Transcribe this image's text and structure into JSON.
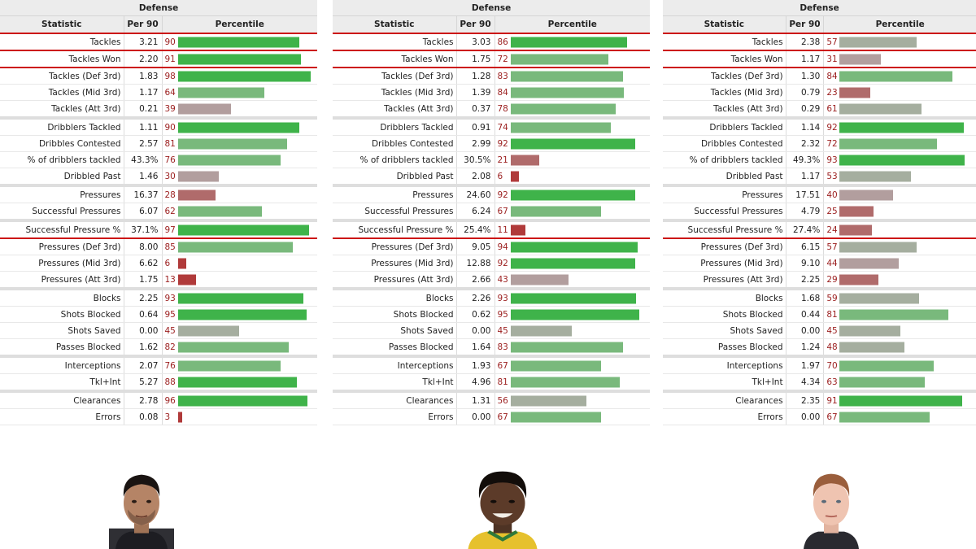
{
  "colors": {
    "bar_elite": "#3fb34a",
    "bar_good": "#79b97c",
    "bar_neutral": "#a5ae9f",
    "bar_mid_low": "#b29e9e",
    "bar_low": "#b06b6b",
    "bar_very_low": "#b03a3a",
    "highlight_line": "#cc1111"
  },
  "panels": [
    {
      "title": "Defense",
      "headers": {
        "statistic": "Statistic",
        "per90": "Per 90",
        "percentile": "Percentile"
      },
      "photo_icon": "player-headshot-1",
      "rows": [
        {
          "stat": "Tackles",
          "per90": "3.21",
          "pct": "90"
        },
        {
          "stat": "Tackles Won",
          "per90": "2.20",
          "pct": "91"
        },
        {
          "stat": "Tackles (Def 3rd)",
          "per90": "1.83",
          "pct": "98"
        },
        {
          "stat": "Tackles (Mid 3rd)",
          "per90": "1.17",
          "pct": "64"
        },
        {
          "stat": "Tackles (Att 3rd)",
          "per90": "0.21",
          "pct": "39"
        },
        {
          "stat": "Dribblers Tackled",
          "per90": "1.11",
          "pct": "90"
        },
        {
          "stat": "Dribbles Contested",
          "per90": "2.57",
          "pct": "81"
        },
        {
          "stat": "% of dribblers tackled",
          "per90": "43.3%",
          "pct": "76"
        },
        {
          "stat": "Dribbled Past",
          "per90": "1.46",
          "pct": "30"
        },
        {
          "stat": "Pressures",
          "per90": "16.37",
          "pct": "28"
        },
        {
          "stat": "Successful Pressures",
          "per90": "6.07",
          "pct": "62"
        },
        {
          "stat": "Successful Pressure %",
          "per90": "37.1%",
          "pct": "97"
        },
        {
          "stat": "Pressures (Def 3rd)",
          "per90": "8.00",
          "pct": "85"
        },
        {
          "stat": "Pressures (Mid 3rd)",
          "per90": "6.62",
          "pct": "6"
        },
        {
          "stat": "Pressures (Att 3rd)",
          "per90": "1.75",
          "pct": "13"
        },
        {
          "stat": "Blocks",
          "per90": "2.25",
          "pct": "93"
        },
        {
          "stat": "Shots Blocked",
          "per90": "0.64",
          "pct": "95"
        },
        {
          "stat": "Shots Saved",
          "per90": "0.00",
          "pct": "45"
        },
        {
          "stat": "Passes Blocked",
          "per90": "1.62",
          "pct": "82"
        },
        {
          "stat": "Interceptions",
          "per90": "2.07",
          "pct": "76"
        },
        {
          "stat": "Tkl+Int",
          "per90": "5.27",
          "pct": "88"
        },
        {
          "stat": "Clearances",
          "per90": "2.78",
          "pct": "96"
        },
        {
          "stat": "Errors",
          "per90": "0.08",
          "pct": "3"
        }
      ]
    },
    {
      "title": "Defense",
      "headers": {
        "statistic": "Statistic",
        "per90": "Per 90",
        "percentile": "Percentile"
      },
      "photo_icon": "player-headshot-2",
      "rows": [
        {
          "stat": "Tackles",
          "per90": "3.03",
          "pct": "86"
        },
        {
          "stat": "Tackles Won",
          "per90": "1.75",
          "pct": "72"
        },
        {
          "stat": "Tackles (Def 3rd)",
          "per90": "1.28",
          "pct": "83"
        },
        {
          "stat": "Tackles (Mid 3rd)",
          "per90": "1.39",
          "pct": "84"
        },
        {
          "stat": "Tackles (Att 3rd)",
          "per90": "0.37",
          "pct": "78"
        },
        {
          "stat": "Dribblers Tackled",
          "per90": "0.91",
          "pct": "74"
        },
        {
          "stat": "Dribbles Contested",
          "per90": "2.99",
          "pct": "92"
        },
        {
          "stat": "% of dribblers tackled",
          "per90": "30.5%",
          "pct": "21"
        },
        {
          "stat": "Dribbled Past",
          "per90": "2.08",
          "pct": "6"
        },
        {
          "stat": "Pressures",
          "per90": "24.60",
          "pct": "92"
        },
        {
          "stat": "Successful Pressures",
          "per90": "6.24",
          "pct": "67"
        },
        {
          "stat": "Successful Pressure %",
          "per90": "25.4%",
          "pct": "11"
        },
        {
          "stat": "Pressures (Def 3rd)",
          "per90": "9.05",
          "pct": "94"
        },
        {
          "stat": "Pressures (Mid 3rd)",
          "per90": "12.88",
          "pct": "92"
        },
        {
          "stat": "Pressures (Att 3rd)",
          "per90": "2.66",
          "pct": "43"
        },
        {
          "stat": "Blocks",
          "per90": "2.26",
          "pct": "93"
        },
        {
          "stat": "Shots Blocked",
          "per90": "0.62",
          "pct": "95"
        },
        {
          "stat": "Shots Saved",
          "per90": "0.00",
          "pct": "45"
        },
        {
          "stat": "Passes Blocked",
          "per90": "1.64",
          "pct": "83"
        },
        {
          "stat": "Interceptions",
          "per90": "1.93",
          "pct": "67"
        },
        {
          "stat": "Tkl+Int",
          "per90": "4.96",
          "pct": "81"
        },
        {
          "stat": "Clearances",
          "per90": "1.31",
          "pct": "56"
        },
        {
          "stat": "Errors",
          "per90": "0.00",
          "pct": "67"
        }
      ]
    },
    {
      "title": "Defense",
      "headers": {
        "statistic": "Statistic",
        "per90": "Per 90",
        "percentile": "Percentile"
      },
      "photo_icon": "player-headshot-3",
      "rows": [
        {
          "stat": "Tackles",
          "per90": "2.38",
          "pct": "57"
        },
        {
          "stat": "Tackles Won",
          "per90": "1.17",
          "pct": "31"
        },
        {
          "stat": "Tackles (Def 3rd)",
          "per90": "1.30",
          "pct": "84"
        },
        {
          "stat": "Tackles (Mid 3rd)",
          "per90": "0.79",
          "pct": "23"
        },
        {
          "stat": "Tackles (Att 3rd)",
          "per90": "0.29",
          "pct": "61"
        },
        {
          "stat": "Dribblers Tackled",
          "per90": "1.14",
          "pct": "92"
        },
        {
          "stat": "Dribbles Contested",
          "per90": "2.32",
          "pct": "72"
        },
        {
          "stat": "% of dribblers tackled",
          "per90": "49.3%",
          "pct": "93"
        },
        {
          "stat": "Dribbled Past",
          "per90": "1.17",
          "pct": "53"
        },
        {
          "stat": "Pressures",
          "per90": "17.51",
          "pct": "40"
        },
        {
          "stat": "Successful Pressures",
          "per90": "4.79",
          "pct": "25"
        },
        {
          "stat": "Successful Pressure %",
          "per90": "27.4%",
          "pct": "24"
        },
        {
          "stat": "Pressures (Def 3rd)",
          "per90": "6.15",
          "pct": "57"
        },
        {
          "stat": "Pressures (Mid 3rd)",
          "per90": "9.10",
          "pct": "44"
        },
        {
          "stat": "Pressures (Att 3rd)",
          "per90": "2.25",
          "pct": "29"
        },
        {
          "stat": "Blocks",
          "per90": "1.68",
          "pct": "59"
        },
        {
          "stat": "Shots Blocked",
          "per90": "0.44",
          "pct": "81"
        },
        {
          "stat": "Shots Saved",
          "per90": "0.00",
          "pct": "45"
        },
        {
          "stat": "Passes Blocked",
          "per90": "1.24",
          "pct": "48"
        },
        {
          "stat": "Interceptions",
          "per90": "1.97",
          "pct": "70"
        },
        {
          "stat": "Tkl+Int",
          "per90": "4.34",
          "pct": "63"
        },
        {
          "stat": "Clearances",
          "per90": "2.35",
          "pct": "91"
        },
        {
          "stat": "Errors",
          "per90": "0.00",
          "pct": "67"
        }
      ]
    }
  ]
}
